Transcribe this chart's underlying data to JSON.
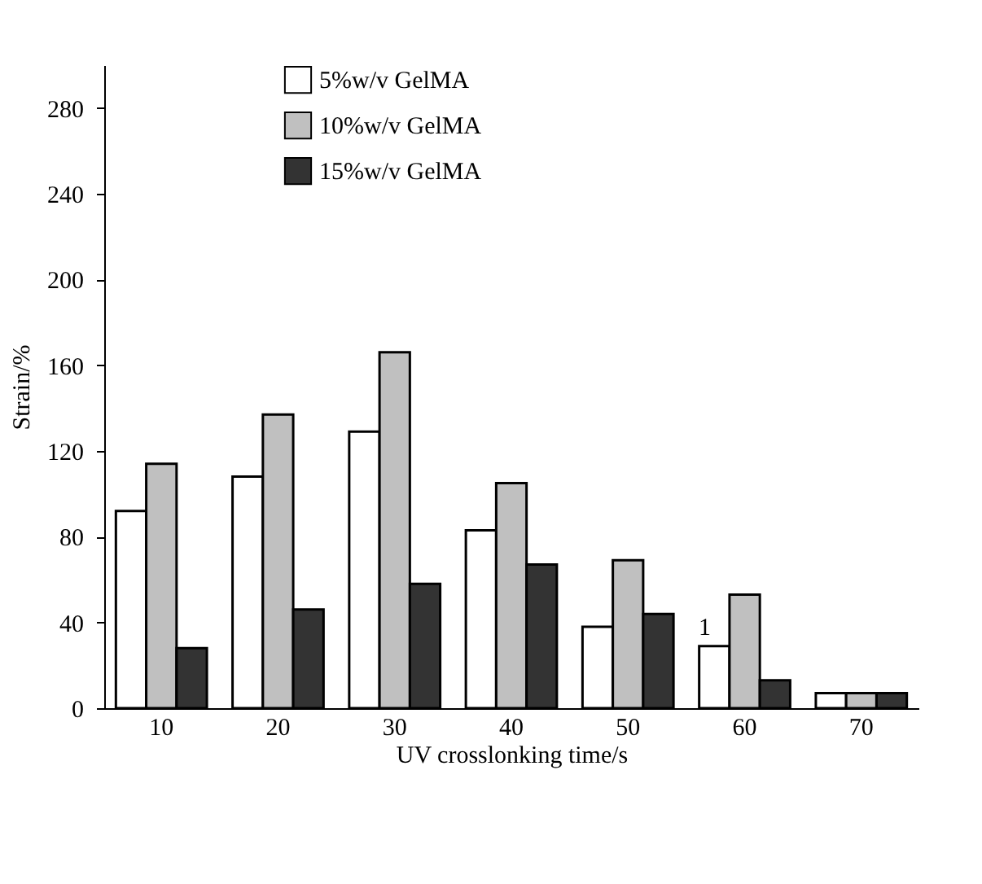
{
  "chart_data": {
    "type": "bar",
    "xlabel": "UV crosslonking time/s",
    "ylabel": "Strain/%",
    "categories": [
      "10",
      "20",
      "30",
      "40",
      "50",
      "60",
      "70"
    ],
    "series": [
      {
        "name": "5%w/v GelMA",
        "color": "#ffffff",
        "values": [
          92,
          108,
          129,
          83,
          38,
          29,
          7
        ]
      },
      {
        "name": "10%w/v GelMA",
        "color": "#c0c0c0",
        "values": [
          114,
          137,
          166,
          105,
          69,
          53,
          7
        ]
      },
      {
        "name": "15%w/v GelMA",
        "color": "#333333",
        "values": [
          28,
          46,
          58,
          67,
          44,
          13,
          7
        ]
      }
    ],
    "ylim": [
      0,
      300
    ],
    "yticks": [
      0,
      40,
      80,
      120,
      160,
      200,
      240,
      280
    ],
    "annotations": [
      "1"
    ],
    "grid": false,
    "legend": "top left"
  }
}
